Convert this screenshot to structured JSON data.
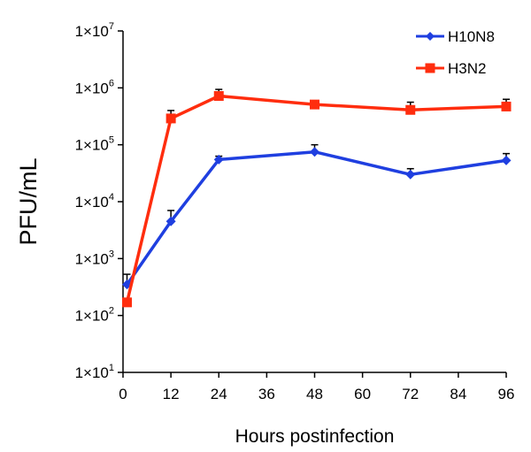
{
  "chart_data": {
    "type": "line",
    "xlabel": "Hours postinfection",
    "ylabel": "PFU/mL",
    "xlim": [
      0,
      96
    ],
    "xticks": [
      0,
      12,
      24,
      36,
      48,
      60,
      72,
      84,
      96
    ],
    "ylim": [
      10,
      10000000
    ],
    "yscale": "log",
    "yticks": [
      {
        "value": 10,
        "label": "1×10",
        "exp": "1"
      },
      {
        "value": 100,
        "label": "1×10",
        "exp": "2"
      },
      {
        "value": 1000,
        "label": "1×10",
        "exp": "3"
      },
      {
        "value": 10000,
        "label": "1×10",
        "exp": "4"
      },
      {
        "value": 100000,
        "label": "1×10",
        "exp": "5"
      },
      {
        "value": 1000000,
        "label": "1×10",
        "exp": "6"
      },
      {
        "value": 10000000,
        "label": "1×10",
        "exp": "7"
      }
    ],
    "legend_position": "top-right",
    "grid": false,
    "series": [
      {
        "name": "H10N8",
        "color": "#1f3fe0",
        "marker": "diamond",
        "points": [
          {
            "x": 1,
            "y": 350,
            "err": 180
          },
          {
            "x": 12,
            "y": 4500,
            "err": 2500
          },
          {
            "x": 24,
            "y": 55000,
            "err": 8000
          },
          {
            "x": 48,
            "y": 75000,
            "err": 25000
          },
          {
            "x": 72,
            "y": 30000,
            "err": 8000
          },
          {
            "x": 96,
            "y": 53000,
            "err": 17000
          }
        ]
      },
      {
        "name": "H3N2",
        "color": "#ff2d0e",
        "marker": "square",
        "points": [
          {
            "x": 1,
            "y": 170,
            "err": 0
          },
          {
            "x": 12,
            "y": 290000,
            "err": 110000
          },
          {
            "x": 24,
            "y": 720000,
            "err": 220000
          },
          {
            "x": 48,
            "y": 510000,
            "err": 0
          },
          {
            "x": 72,
            "y": 410000,
            "err": 150000
          },
          {
            "x": 96,
            "y": 470000,
            "err": 160000
          }
        ]
      }
    ]
  }
}
